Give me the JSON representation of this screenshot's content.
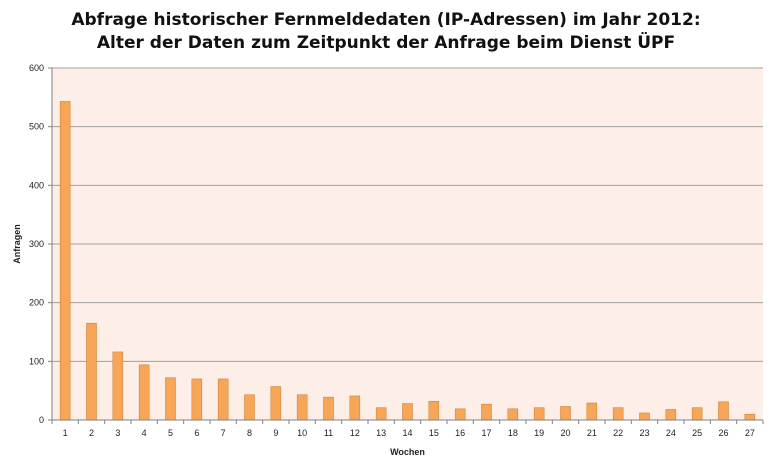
{
  "chart_data": {
    "type": "bar",
    "title_line1": "Abfrage historischer Fernmeldedaten (IP-Adressen) im Jahr 2012:",
    "title_line2": "Alter der Daten zum Zeitpunkt der Anfrage beim Dienst ÜPF",
    "xlabel": "Wochen",
    "ylabel": "Anfragen",
    "ylim": [
      0,
      600
    ],
    "yticks": [
      0,
      100,
      200,
      300,
      400,
      500,
      600
    ],
    "grid": true,
    "categories": [
      "1",
      "2",
      "3",
      "4",
      "5",
      "6",
      "7",
      "8",
      "9",
      "10",
      "11",
      "12",
      "13",
      "14",
      "15",
      "16",
      "17",
      "18",
      "19",
      "20",
      "21",
      "22",
      "23",
      "24",
      "25",
      "26",
      "27"
    ],
    "values": [
      543,
      165,
      116,
      94,
      72,
      70,
      70,
      43,
      57,
      43,
      39,
      41,
      21,
      28,
      32,
      19,
      27,
      19,
      21,
      23,
      29,
      21,
      12,
      18,
      21,
      31,
      10
    ],
    "colors": {
      "bar_fill": "#f7a556",
      "bar_stroke": "#c97a2e",
      "plot_bg": "#fdeee7",
      "gridline": "#a0a0a0",
      "axis": "#808080"
    }
  }
}
